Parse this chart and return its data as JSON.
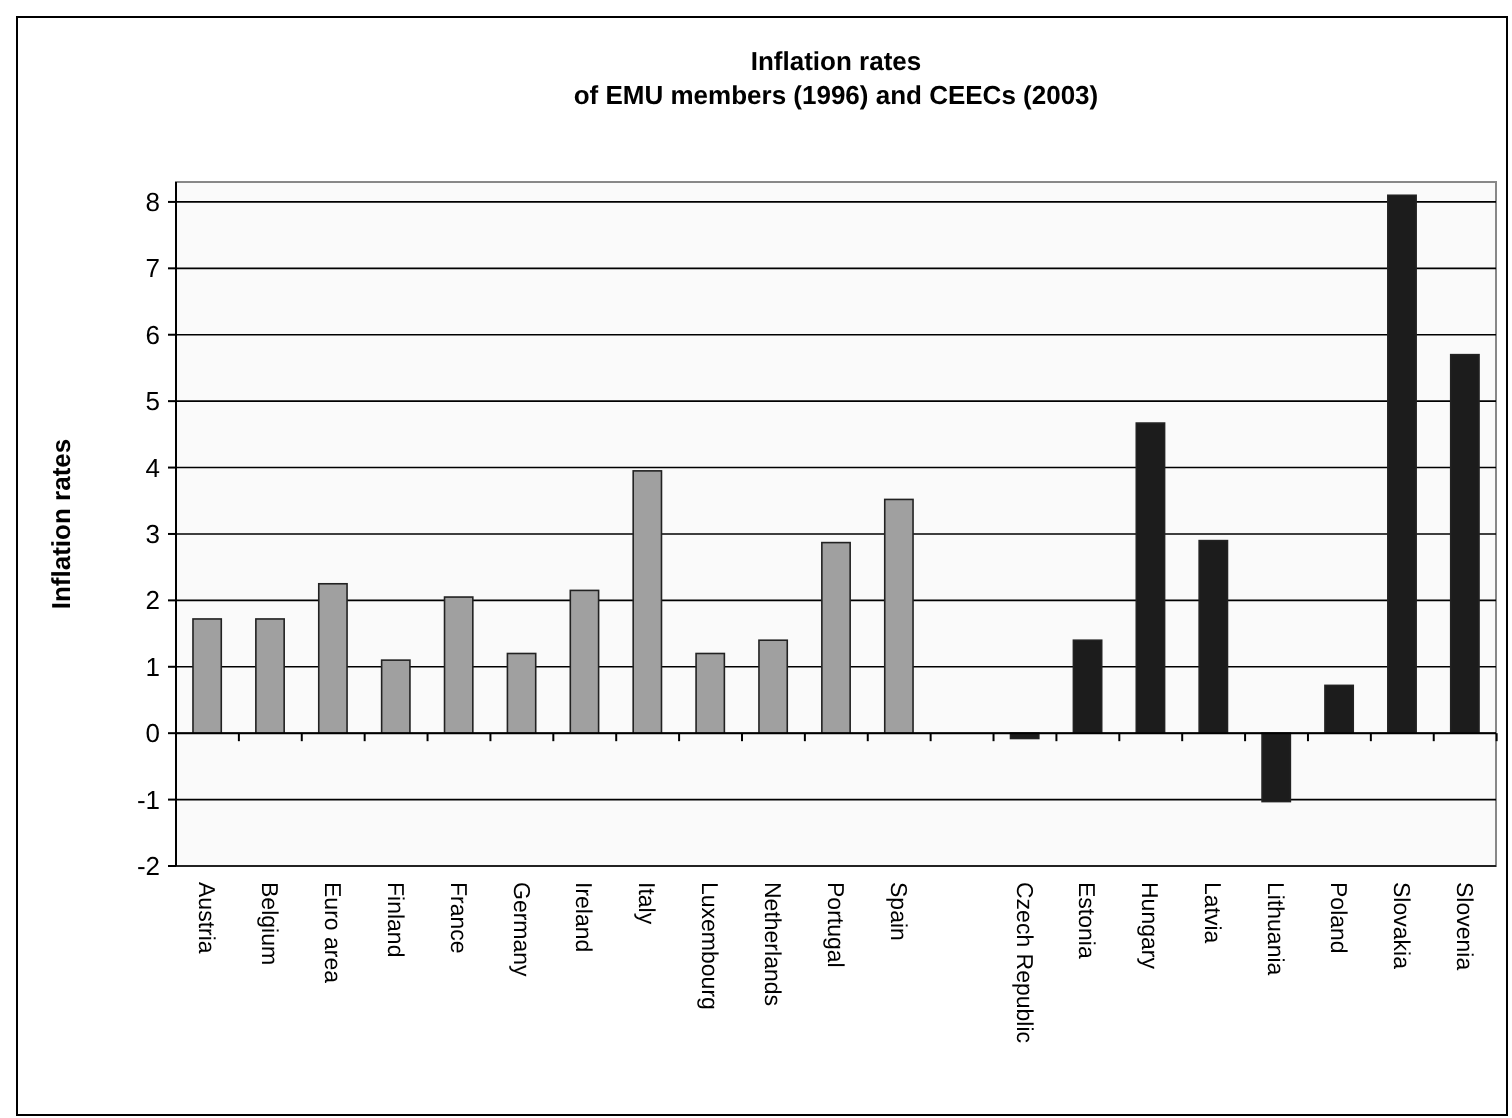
{
  "chart_data": {
    "type": "bar",
    "title": "Inflation rates\nof EMU members (1996) and CEECs (2003)",
    "ylabel": "Inflation rates",
    "categories": [
      "Austria",
      "Belgium",
      "Euro area",
      "Finland",
      "France",
      "Germany",
      "Ireland",
      "Italy",
      "Luxembourg",
      "Netherlands",
      "Portugal",
      "Spain",
      null,
      "Czech Republic",
      "Estonia",
      "Hungary",
      "Latvia",
      "Lithuania",
      "Poland",
      "Slovakia",
      "Slovenia"
    ],
    "values": [
      1.72,
      1.72,
      2.25,
      1.1,
      2.05,
      1.2,
      2.15,
      3.95,
      1.2,
      1.4,
      2.87,
      3.52,
      null,
      -0.08,
      1.4,
      4.67,
      2.9,
      -1.03,
      0.72,
      8.1,
      5.7
    ],
    "colors": [
      "#a0a0a0",
      "#a0a0a0",
      "#a0a0a0",
      "#a0a0a0",
      "#a0a0a0",
      "#a0a0a0",
      "#a0a0a0",
      "#a0a0a0",
      "#a0a0a0",
      "#a0a0a0",
      "#a0a0a0",
      "#a0a0a0",
      null,
      "#1c1c1c",
      "#1c1c1c",
      "#1c1c1c",
      "#1c1c1c",
      "#1c1c1c",
      "#1c1c1c",
      "#1c1c1c",
      "#1c1c1c"
    ],
    "ylim": [
      -2,
      8.3
    ],
    "yticks": [
      -2,
      -1,
      0,
      1,
      2,
      3,
      4,
      5,
      6,
      7,
      8
    ],
    "grid": "y"
  }
}
